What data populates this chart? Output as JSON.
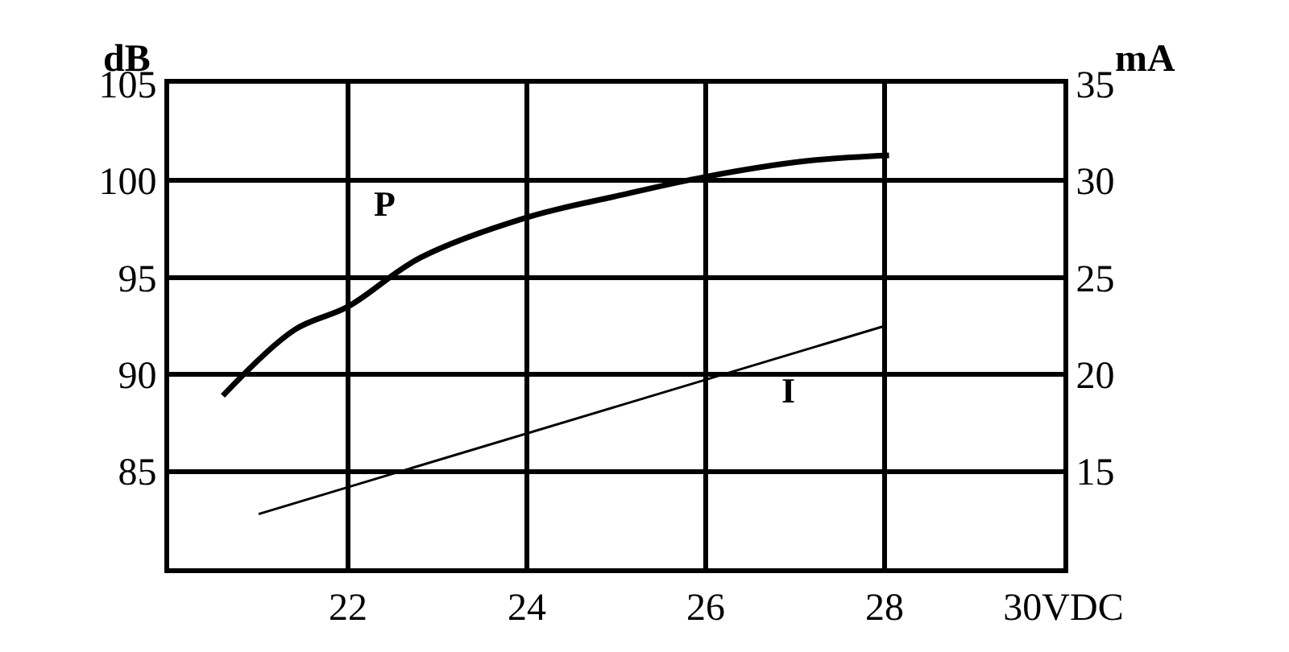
{
  "chart_data": {
    "type": "line",
    "ylabel": "dB",
    "y2label": "mA",
    "xlim": [
      20,
      30
    ],
    "xticks": [
      22,
      24,
      26,
      28,
      {
        "value": 30,
        "label": "30VDC"
      }
    ],
    "ylim": [
      80,
      105
    ],
    "yticks": [
      85,
      90,
      95,
      100,
      105
    ],
    "y2lim": [
      10,
      35
    ],
    "y2ticks": [
      15,
      20,
      25,
      30,
      35
    ],
    "grid": true,
    "legend": false,
    "series": [
      {
        "name": "P",
        "color": "#000000",
        "x": [
          20.6,
          21.4,
          22,
          22.8,
          24,
          25,
          26,
          27.1,
          28.05
        ],
        "values": [
          88.9,
          92.3,
          93.5,
          96,
          98.1,
          99.2,
          100.2,
          101,
          101.3
        ]
      },
      {
        "name": "I",
        "color": "#000000",
        "axis": "y2",
        "x": [
          21,
          28
        ],
        "values": [
          12.8,
          22.5
        ]
      }
    ]
  }
}
